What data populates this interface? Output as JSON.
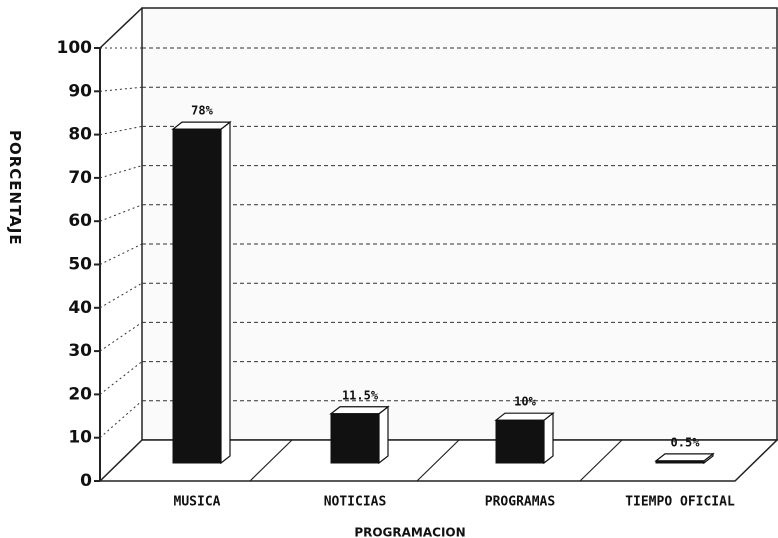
{
  "chart_data": {
    "type": "bar3d",
    "y_label": "PORCENTAJE",
    "x_label": "PROGRAMACION",
    "categories": [
      "MUSICA",
      "NOTICIAS",
      "PROGRAMAS",
      "TIEMPO OFICIAL"
    ],
    "values": [
      78,
      11.5,
      10,
      0.5
    ],
    "value_labels": [
      "78%",
      "11.5%",
      "10%",
      "0.5%"
    ],
    "color": "#111111",
    "ylim": [
      0,
      100
    ],
    "yticks": [
      0,
      10,
      20,
      30,
      40,
      50,
      60,
      70,
      80,
      90,
      100
    ],
    "grid": true
  }
}
